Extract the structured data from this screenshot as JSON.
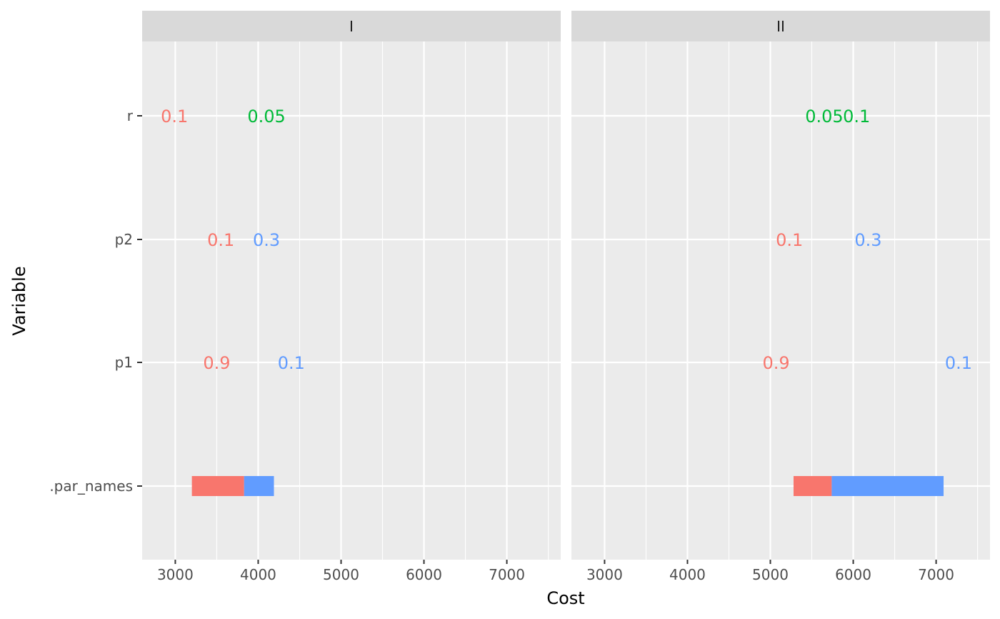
{
  "chart_data": {
    "type": "bar",
    "subtype": "tornado",
    "xlabel": "Cost",
    "ylabel": "Variable",
    "xlim": [
      2600,
      7650
    ],
    "xticks": [
      3000,
      4000,
      5000,
      6000,
      7000
    ],
    "grid": true,
    "legend": "none",
    "colors": {
      "panel_bg": "#EBEBEB",
      "strip_bg": "#D9D9D9",
      "grid": "#FFFFFF",
      "low_bar": "#F8766D",
      "high_bar": "#619CFF",
      "label_red": "#F8766D",
      "label_green": "#00BA38",
      "label_blue": "#619CFF"
    },
    "categories": [
      "r",
      "p2",
      "p1",
      ".par_names"
    ],
    "panels": [
      {
        "strip": "I",
        "bars": [
          {
            "variable": ".par_names",
            "from": 3200,
            "to": 3830,
            "color": "low_bar"
          },
          {
            "variable": ".par_names",
            "from": 3830,
            "to": 4190,
            "color": "high_bar"
          }
        ],
        "labels": [
          {
            "variable": "r",
            "x": 2990,
            "text": "0.1",
            "color": "label_red"
          },
          {
            "variable": "r",
            "x": 4100,
            "text": "0.05",
            "color": "label_green"
          },
          {
            "variable": "p2",
            "x": 3550,
            "text": "0.1",
            "color": "label_red"
          },
          {
            "variable": "p2",
            "x": 4100,
            "text": "0.3",
            "color": "label_blue"
          },
          {
            "variable": "p1",
            "x": 3500,
            "text": "0.9",
            "color": "label_red"
          },
          {
            "variable": "p1",
            "x": 4400,
            "text": "0.1",
            "color": "label_blue"
          }
        ]
      },
      {
        "strip": "II",
        "bars": [
          {
            "variable": ".par_names",
            "from": 5280,
            "to": 5740,
            "color": "low_bar"
          },
          {
            "variable": ".par_names",
            "from": 5740,
            "to": 7090,
            "color": "high_bar"
          }
        ],
        "labels": [
          {
            "variable": "r",
            "x": 5650,
            "text": "0.05",
            "color": "label_green"
          },
          {
            "variable": "r",
            "x": 6040,
            "text": "0.1",
            "color": "label_green"
          },
          {
            "variable": "p2",
            "x": 5230,
            "text": "0.1",
            "color": "label_red"
          },
          {
            "variable": "p2",
            "x": 6180,
            "text": "0.3",
            "color": "label_blue"
          },
          {
            "variable": "p1",
            "x": 5070,
            "text": "0.9",
            "color": "label_red"
          },
          {
            "variable": "p1",
            "x": 7270,
            "text": "0.1",
            "color": "label_blue"
          }
        ]
      }
    ]
  }
}
